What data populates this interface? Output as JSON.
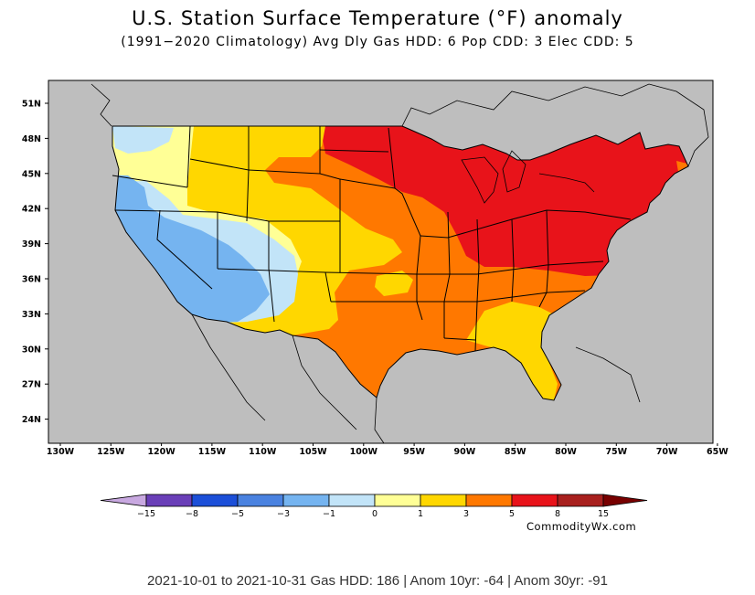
{
  "header": {
    "title": "U.S. Station Surface Temperature (°F) anomaly",
    "subtitle": "(1991−2020 Climatology)  Avg Dly Gas HDD: 6 Pop CDD: 3 Elec CDD: 5"
  },
  "map": {
    "lat_labels": [
      "51N",
      "48N",
      "45N",
      "42N",
      "39N",
      "36N",
      "33N",
      "30N",
      "27N",
      "24N"
    ],
    "lon_labels": [
      "130W",
      "125W",
      "120W",
      "115W",
      "110W",
      "105W",
      "100W",
      "95W",
      "90W",
      "85W",
      "80W",
      "75W",
      "70W",
      "65W"
    ],
    "ocean_color": "#bebebe",
    "regions": [
      {
        "name": "west-coast",
        "anomaly_bin": "-3 to -1",
        "color": "#75b4f0"
      },
      {
        "name": "great-basin",
        "anomaly_bin": "-1 to 0",
        "color": "#c2e4f8"
      },
      {
        "name": "pacific-northwest",
        "anomaly_bin": "0 to 1",
        "color": "#ffff96"
      },
      {
        "name": "rockies",
        "anomaly_bin": "1 to 3",
        "color": "#ffd700"
      },
      {
        "name": "central-plains",
        "anomaly_bin": "3 to 5",
        "color": "#ff7800"
      },
      {
        "name": "upper-midwest-northeast",
        "anomaly_bin": "5 to 8",
        "color": "#e8131a"
      },
      {
        "name": "southeast",
        "anomaly_bin": "1 to 3",
        "color": "#ffd700"
      }
    ]
  },
  "colorbar": {
    "labels": [
      "−15",
      "−8",
      "−5",
      "−3",
      "−1",
      "0",
      "1",
      "3",
      "5",
      "8",
      "15"
    ],
    "colors": [
      "#c8a8e0",
      "#6a3fb8",
      "#1c4fd8",
      "#4a82e0",
      "#75b4f0",
      "#c2e4f8",
      "#ffff96",
      "#ffd700",
      "#ff7800",
      "#e8131a",
      "#a8201e",
      "#780000"
    ]
  },
  "credit": "CommodityWx.com",
  "footer": "2021-10-01 to 2021-10-31 Gas HDD: 186 | Anom 10yr: -64 | Anom 30yr: -91"
}
